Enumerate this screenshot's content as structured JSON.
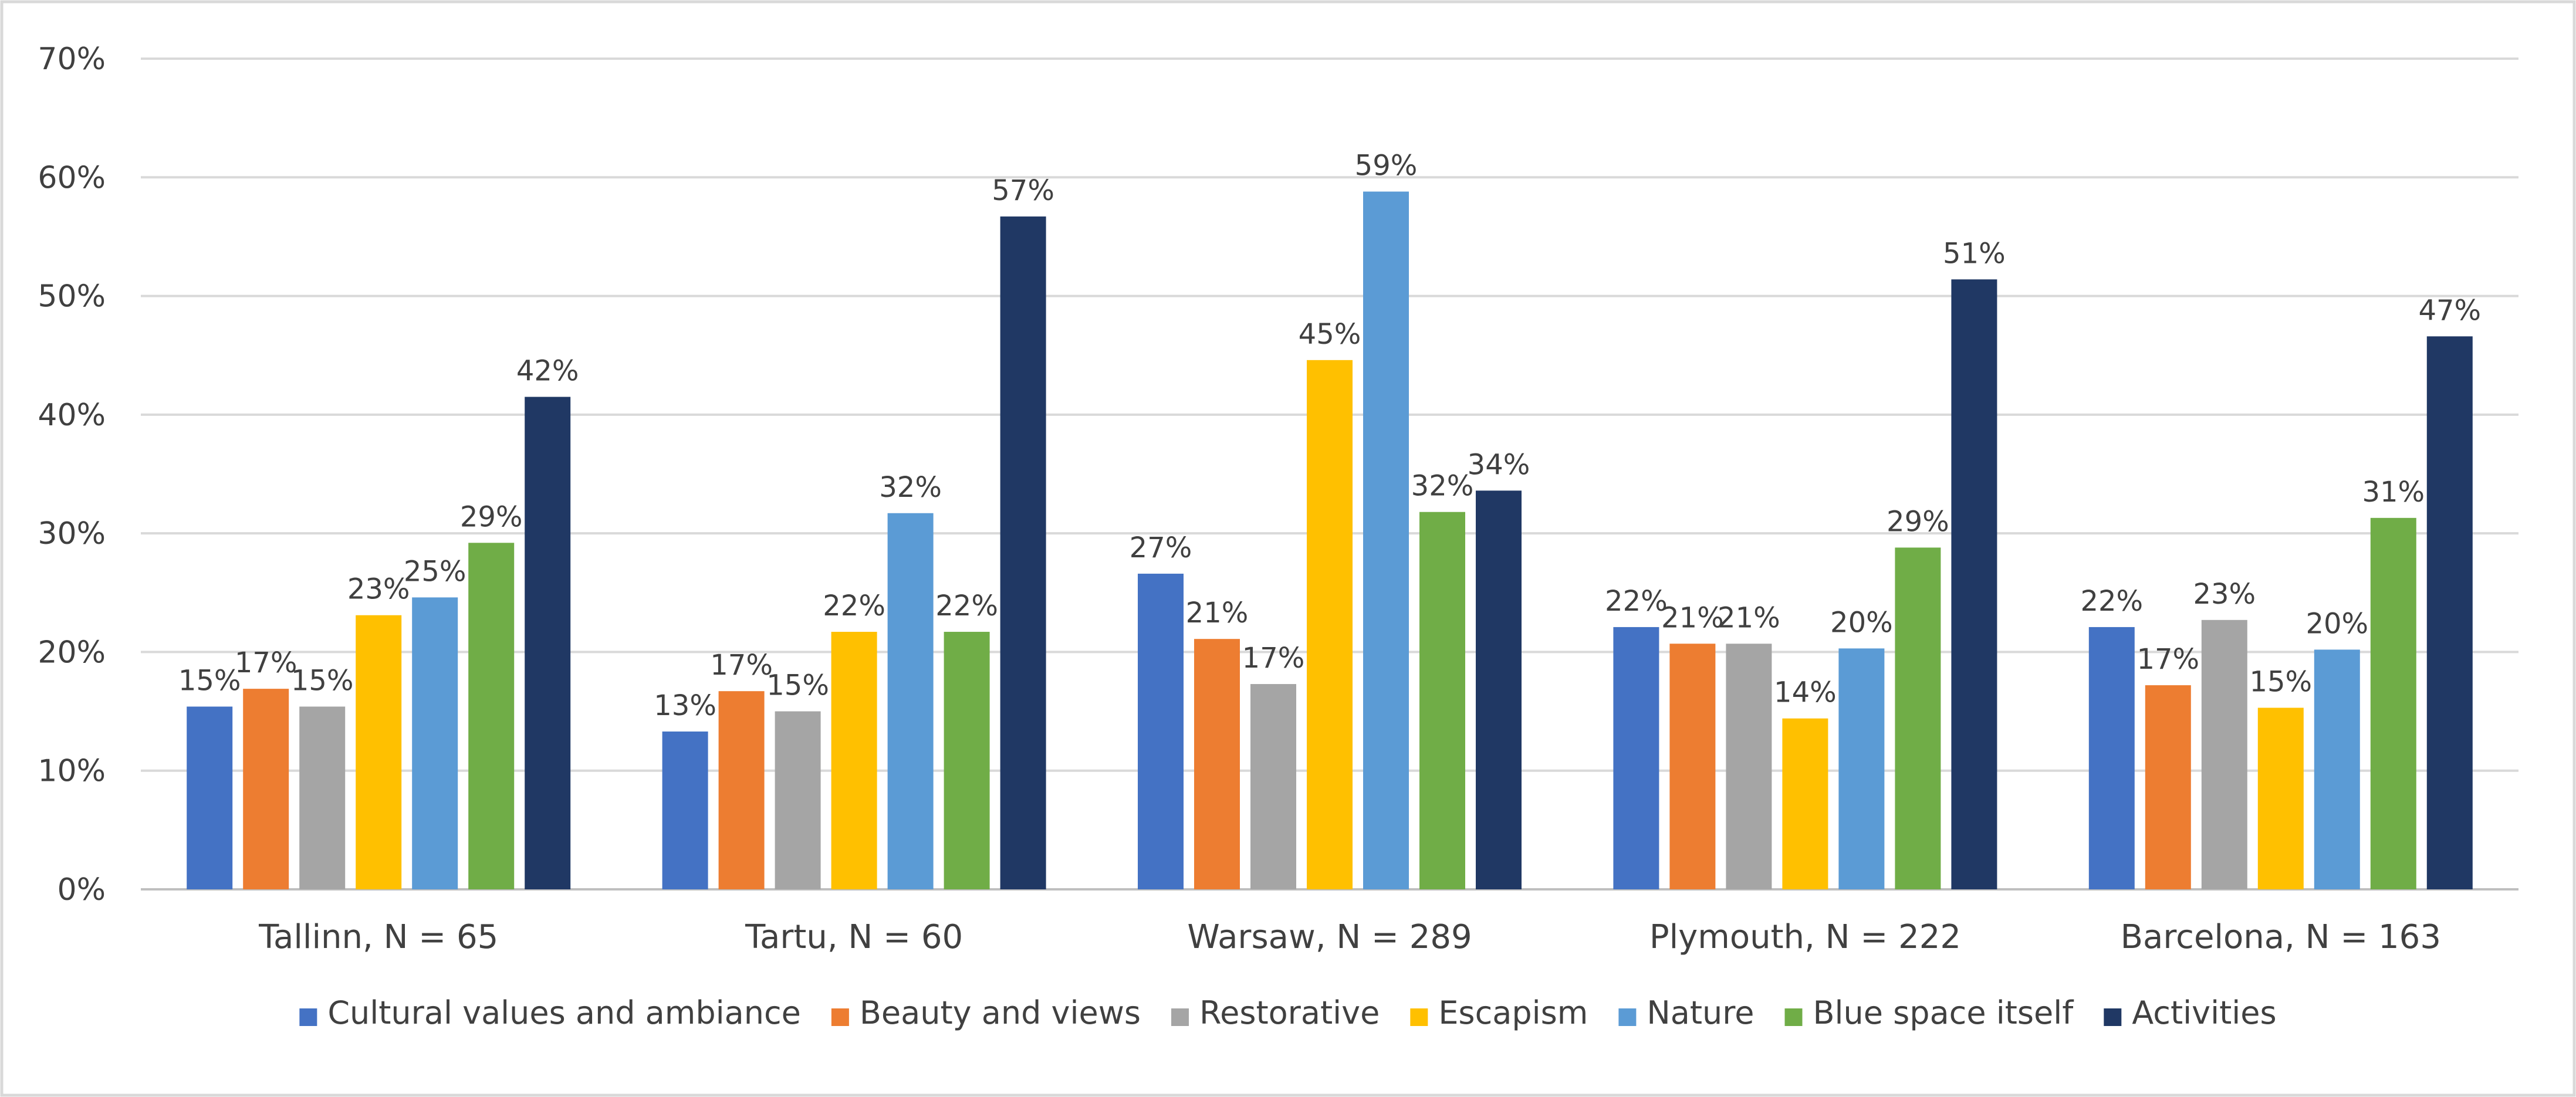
{
  "chart_data": {
    "type": "bar",
    "title": "",
    "xlabel": "",
    "ylabel": "",
    "ylim": [
      0,
      70
    ],
    "yticks": [
      0,
      10,
      20,
      30,
      40,
      50,
      60,
      70
    ],
    "ytick_labels": [
      "0%",
      "10%",
      "20%",
      "30%",
      "40%",
      "50%",
      "60%",
      "70%"
    ],
    "grid": true,
    "legend_position": "bottom",
    "categories": [
      "Tallinn, N = 65",
      "Tartu, N = 60",
      "Warsaw, N = 289",
      "Plymouth, N = 222",
      "Barcelona, N = 163"
    ],
    "series": [
      {
        "name": "Cultural values and ambiance",
        "color": "#4472c4",
        "values": [
          15.4,
          13.3,
          26.6,
          22.1,
          22.1
        ],
        "labels": [
          "15%",
          "13%",
          "27%",
          "22%",
          "22%"
        ]
      },
      {
        "name": "Beauty and views",
        "color": "#ed7d31",
        "values": [
          16.9,
          16.7,
          21.1,
          20.7,
          17.2
        ],
        "labels": [
          "17%",
          "17%",
          "21%",
          "21%",
          "17%"
        ]
      },
      {
        "name": "Restorative",
        "color": "#a5a5a5",
        "values": [
          15.4,
          15.0,
          17.3,
          20.7,
          22.7
        ],
        "labels": [
          "15%",
          "15%",
          "17%",
          "21%",
          "23%"
        ]
      },
      {
        "name": "Escapism",
        "color": "#ffc000",
        "values": [
          23.1,
          21.7,
          44.6,
          14.4,
          15.3
        ],
        "labels": [
          "23%",
          "22%",
          "45%",
          "14%",
          "15%"
        ]
      },
      {
        "name": "Nature",
        "color": "#5b9bd5",
        "values": [
          24.6,
          31.7,
          58.8,
          20.3,
          20.2
        ],
        "labels": [
          "25%",
          "32%",
          "59%",
          "20%",
          "20%"
        ]
      },
      {
        "name": "Blue space itself",
        "color": "#70ad47",
        "values": [
          29.2,
          21.7,
          31.8,
          28.8,
          31.3
        ],
        "labels": [
          "29%",
          "22%",
          "32%",
          "29%",
          "31%"
        ]
      },
      {
        "name": "Activities",
        "color": "#203864",
        "values": [
          41.5,
          56.7,
          33.6,
          51.4,
          46.6
        ],
        "labels": [
          "42%",
          "57%",
          "34%",
          "51%",
          "47%"
        ]
      }
    ]
  }
}
